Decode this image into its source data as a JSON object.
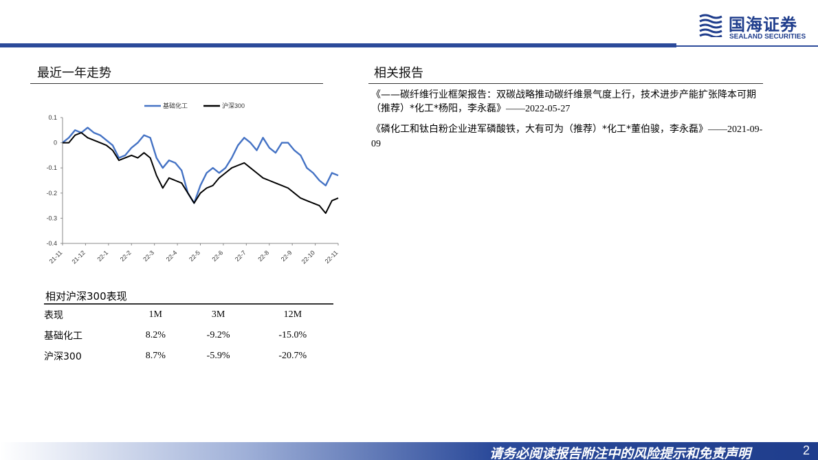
{
  "brand": {
    "name_cn": "国海证券",
    "name_en": "SEALAND SECURITIES",
    "color": "#2b4a9a"
  },
  "left_section": {
    "title": "最近一年走势"
  },
  "right_section": {
    "title": "相关报告"
  },
  "chart_data": {
    "type": "line",
    "series": [
      {
        "name": "基础化工",
        "color": "#4472c4",
        "values": [
          0.0,
          0.02,
          0.05,
          0.04,
          0.06,
          0.04,
          0.03,
          0.01,
          -0.01,
          -0.06,
          -0.05,
          -0.02,
          0.0,
          0.03,
          0.02,
          -0.06,
          -0.1,
          -0.07,
          -0.08,
          -0.11,
          -0.2,
          -0.24,
          -0.17,
          -0.12,
          -0.1,
          -0.12,
          -0.1,
          -0.06,
          -0.01,
          0.02,
          0.0,
          -0.03,
          0.02,
          -0.02,
          -0.04,
          0.0,
          0.0,
          -0.03,
          -0.05,
          -0.1,
          -0.12,
          -0.15,
          -0.17,
          -0.12,
          -0.13
        ]
      },
      {
        "name": "沪深300",
        "color": "#000000",
        "values": [
          0.0,
          0.0,
          0.03,
          0.04,
          0.02,
          0.01,
          0.0,
          -0.01,
          -0.03,
          -0.07,
          -0.06,
          -0.05,
          -0.06,
          -0.04,
          -0.06,
          -0.13,
          -0.18,
          -0.14,
          -0.15,
          -0.16,
          -0.2,
          -0.24,
          -0.2,
          -0.18,
          -0.17,
          -0.14,
          -0.12,
          -0.1,
          -0.09,
          -0.08,
          -0.1,
          -0.12,
          -0.14,
          -0.15,
          -0.16,
          -0.17,
          -0.18,
          -0.2,
          -0.22,
          -0.23,
          -0.24,
          -0.25,
          -0.28,
          -0.23,
          -0.22
        ]
      }
    ],
    "x_tick_labels": [
      "21-11",
      "21-12",
      "22-1",
      "22-2",
      "22-3",
      "22-4",
      "22-5",
      "22-6",
      "22-7",
      "22-8",
      "22-9",
      "22-10",
      "22-11"
    ],
    "y_ticks": [
      0.1,
      0,
      -0.1,
      -0.2,
      -0.3,
      -0.4
    ],
    "y_tick_labels": [
      "0.1",
      "0",
      "-0.1",
      "-0.2",
      "-0.3",
      "-0.4"
    ],
    "ylim": [
      -0.4,
      0.1
    ],
    "legend_position": "top-center",
    "grid": false
  },
  "performance": {
    "title": "相对沪深300表现",
    "headers": [
      "表现",
      "1M",
      "3M",
      "12M"
    ],
    "rows": [
      [
        "基础化工",
        "8.2%",
        "-9.2%",
        "-15.0%"
      ],
      [
        "沪深300",
        "8.7%",
        "-5.9%",
        "-20.7%"
      ]
    ]
  },
  "reports": [
    {
      "text": "《——碳纤维行业框架报告：双碳战略推动碳纤维景气度上行，技术进步产能扩张降本可期（推荐）*化工*杨阳，李永磊》",
      "date": "——2022-05-27"
    },
    {
      "text": "《磷化工和钛白粉企业进军磷酸铁，大有可为（推荐）*化工*董伯骏，李永磊》",
      "date": "——2021-09-09"
    }
  ],
  "footer": {
    "disclaimer": "请务必阅读报告附注中的风险提示和免责声明",
    "page": "2"
  }
}
